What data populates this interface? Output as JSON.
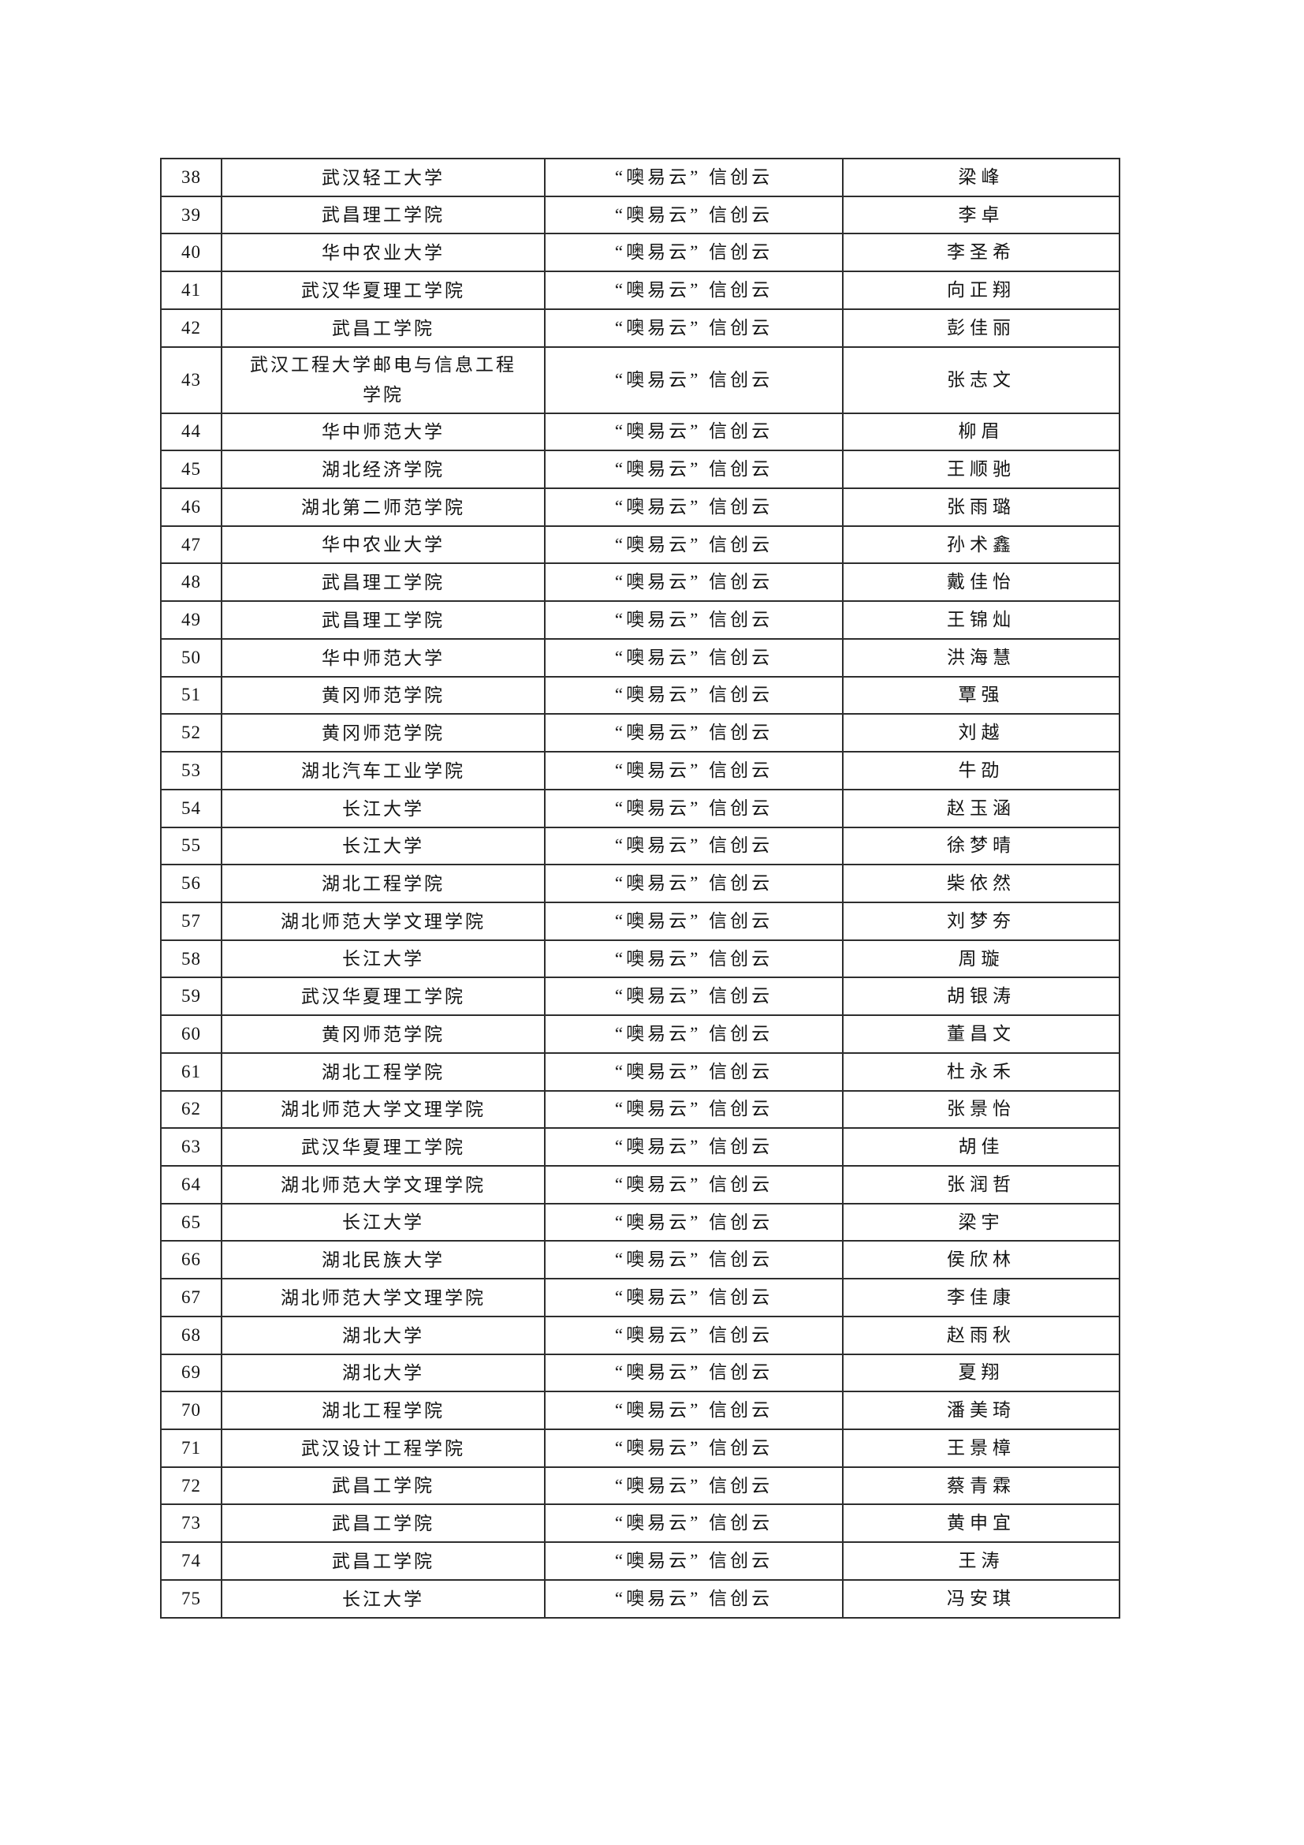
{
  "table": {
    "platform_note": "every row shows the same cloud platform label",
    "rows": [
      {
        "num": "38",
        "school": "武汉轻工大学",
        "platform": "“噢易云” 信创云",
        "name": "梁峰"
      },
      {
        "num": "39",
        "school": "武昌理工学院",
        "platform": "“噢易云” 信创云",
        "name": "李卓"
      },
      {
        "num": "40",
        "school": "华中农业大学",
        "platform": "“噢易云” 信创云",
        "name": "李圣希"
      },
      {
        "num": "41",
        "school": "武汉华夏理工学院",
        "platform": "“噢易云” 信创云",
        "name": "向正翔"
      },
      {
        "num": "42",
        "school": "武昌工学院",
        "platform": "“噢易云” 信创云",
        "name": "彭佳丽"
      },
      {
        "num": "43",
        "school": "武汉工程大学邮电与信息工程学院",
        "platform": "“噢易云” 信创云",
        "name": "张志文"
      },
      {
        "num": "44",
        "school": "华中师范大学",
        "platform": "“噢易云” 信创云",
        "name": "柳眉"
      },
      {
        "num": "45",
        "school": "湖北经济学院",
        "platform": "“噢易云” 信创云",
        "name": "王顺驰"
      },
      {
        "num": "46",
        "school": "湖北第二师范学院",
        "platform": "“噢易云” 信创云",
        "name": "张雨璐"
      },
      {
        "num": "47",
        "school": "华中农业大学",
        "platform": "“噢易云” 信创云",
        "name": "孙术鑫"
      },
      {
        "num": "48",
        "school": "武昌理工学院",
        "platform": "“噢易云” 信创云",
        "name": "戴佳怡"
      },
      {
        "num": "49",
        "school": "武昌理工学院",
        "platform": "“噢易云” 信创云",
        "name": "王锦灿"
      },
      {
        "num": "50",
        "school": "华中师范大学",
        "platform": "“噢易云” 信创云",
        "name": "洪海慧"
      },
      {
        "num": "51",
        "school": "黄冈师范学院",
        "platform": "“噢易云” 信创云",
        "name": "覃强"
      },
      {
        "num": "52",
        "school": "黄冈师范学院",
        "platform": "“噢易云” 信创云",
        "name": "刘越"
      },
      {
        "num": "53",
        "school": "湖北汽车工业学院",
        "platform": "“噢易云” 信创云",
        "name": "牛劭"
      },
      {
        "num": "54",
        "school": "长江大学",
        "platform": "“噢易云” 信创云",
        "name": "赵玉涵"
      },
      {
        "num": "55",
        "school": "长江大学",
        "platform": "“噢易云” 信创云",
        "name": "徐梦晴"
      },
      {
        "num": "56",
        "school": "湖北工程学院",
        "platform": "“噢易云” 信创云",
        "name": "柴依然"
      },
      {
        "num": "57",
        "school": "湖北师范大学文理学院",
        "platform": "“噢易云” 信创云",
        "name": "刘梦夯"
      },
      {
        "num": "58",
        "school": "长江大学",
        "platform": "“噢易云” 信创云",
        "name": "周璇"
      },
      {
        "num": "59",
        "school": "武汉华夏理工学院",
        "platform": "“噢易云” 信创云",
        "name": "胡银涛"
      },
      {
        "num": "60",
        "school": "黄冈师范学院",
        "platform": "“噢易云” 信创云",
        "name": "董昌文"
      },
      {
        "num": "61",
        "school": "湖北工程学院",
        "platform": "“噢易云” 信创云",
        "name": "杜永禾"
      },
      {
        "num": "62",
        "school": "湖北师范大学文理学院",
        "platform": "“噢易云” 信创云",
        "name": "张景怡"
      },
      {
        "num": "63",
        "school": "武汉华夏理工学院",
        "platform": "“噢易云” 信创云",
        "name": "胡佳"
      },
      {
        "num": "64",
        "school": "湖北师范大学文理学院",
        "platform": "“噢易云” 信创云",
        "name": "张润哲"
      },
      {
        "num": "65",
        "school": "长江大学",
        "platform": "“噢易云” 信创云",
        "name": "梁宇"
      },
      {
        "num": "66",
        "school": "湖北民族大学",
        "platform": "“噢易云” 信创云",
        "name": "侯欣林"
      },
      {
        "num": "67",
        "school": "湖北师范大学文理学院",
        "platform": "“噢易云” 信创云",
        "name": "李佳康"
      },
      {
        "num": "68",
        "school": "湖北大学",
        "platform": "“噢易云” 信创云",
        "name": "赵雨秋"
      },
      {
        "num": "69",
        "school": "湖北大学",
        "platform": "“噢易云” 信创云",
        "name": "夏翔"
      },
      {
        "num": "70",
        "school": "湖北工程学院",
        "platform": "“噢易云” 信创云",
        "name": "潘美琦"
      },
      {
        "num": "71",
        "school": "武汉设计工程学院",
        "platform": "“噢易云” 信创云",
        "name": "王景樟"
      },
      {
        "num": "72",
        "school": "武昌工学院",
        "platform": "“噢易云” 信创云",
        "name": "蔡青霖"
      },
      {
        "num": "73",
        "school": "武昌工学院",
        "platform": "“噢易云” 信创云",
        "name": "黄申宜"
      },
      {
        "num": "74",
        "school": "武昌工学院",
        "platform": "“噢易云” 信创云",
        "name": "王涛"
      },
      {
        "num": "75",
        "school": "长江大学",
        "platform": "“噢易云” 信创云",
        "name": "冯安琪"
      }
    ],
    "colors": {
      "border": "#2e2e2e",
      "text": "#141414",
      "page_background": "#ffffff"
    }
  }
}
